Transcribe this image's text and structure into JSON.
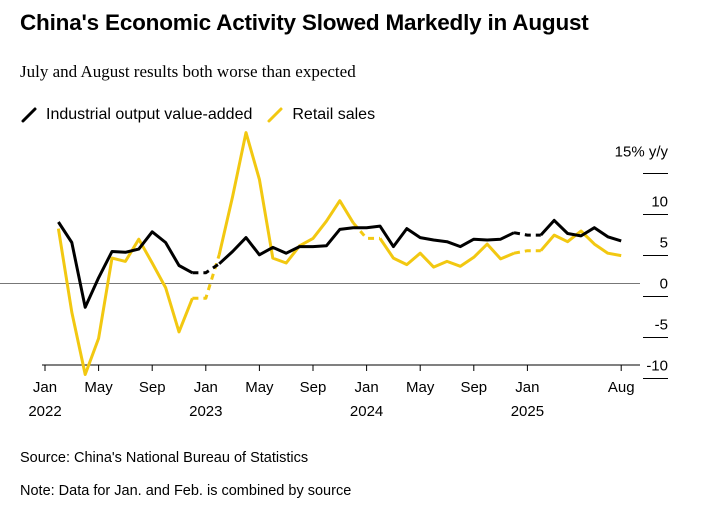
{
  "header": {
    "title": "China's Economic Activity Slowed Markedly in August",
    "subtitle": "July and August results both worse than expected"
  },
  "footer": {
    "source": "Source: China's National Bureau of Statistics",
    "note": "Note: Data for Jan. and Feb. is combined by source"
  },
  "colors": {
    "industrial": "#000000",
    "retail": "#f2c811",
    "zero_line": "#777777"
  },
  "chart_data": {
    "type": "line",
    "title": "China's Economic Activity Slowed Markedly in August",
    "subtitle": "July and August results both worse than expected",
    "ylabel": "% y/y",
    "ylim": [
      -12.5,
      17
    ],
    "y_ticks": [
      {
        "value": 15,
        "label": "15% y/y"
      },
      {
        "value": 10,
        "label": "10"
      },
      {
        "value": 5,
        "label": "5"
      },
      {
        "value": 0,
        "label": "0"
      },
      {
        "value": -5,
        "label": "-5"
      },
      {
        "value": -10,
        "label": "-10"
      }
    ],
    "x_ticks": [
      {
        "month_index": 0,
        "label": "Jan",
        "year": "2022"
      },
      {
        "month_index": 4,
        "label": "May",
        "year": ""
      },
      {
        "month_index": 8,
        "label": "Sep",
        "year": ""
      },
      {
        "month_index": 12,
        "label": "Jan",
        "year": "2023"
      },
      {
        "month_index": 16,
        "label": "May",
        "year": ""
      },
      {
        "month_index": 20,
        "label": "Sep",
        "year": ""
      },
      {
        "month_index": 24,
        "label": "Jan",
        "year": "2024"
      },
      {
        "month_index": 28,
        "label": "May",
        "year": ""
      },
      {
        "month_index": 32,
        "label": "Sep",
        "year": ""
      },
      {
        "month_index": 36,
        "label": "Jan",
        "year": "2025"
      },
      {
        "month_index": 43,
        "label": "Aug",
        "year": ""
      }
    ],
    "x_range": [
      0,
      43
    ],
    "series": [
      {
        "name": "Industrial output value-added",
        "color": "#000000",
        "values": [
          [
            1,
            7.5
          ],
          [
            2,
            5.0
          ],
          [
            3,
            -2.9
          ],
          [
            4,
            0.7
          ],
          [
            5,
            3.9
          ],
          [
            6,
            3.8
          ],
          [
            7,
            4.2
          ],
          [
            8,
            6.3
          ],
          [
            9,
            5.0
          ],
          [
            10,
            2.2
          ],
          [
            11,
            1.3
          ],
          [
            12,
            1.3
          ],
          [
            13,
            2.4
          ],
          [
            14,
            3.9
          ],
          [
            15,
            5.6
          ],
          [
            16,
            3.5
          ],
          [
            17,
            4.4
          ],
          [
            18,
            3.7
          ],
          [
            19,
            4.5
          ],
          [
            20,
            4.5
          ],
          [
            21,
            4.6
          ],
          [
            22,
            6.6
          ],
          [
            23,
            6.8
          ],
          [
            24,
            6.8
          ],
          [
            25,
            7.0
          ],
          [
            26,
            4.5
          ],
          [
            27,
            6.7
          ],
          [
            28,
            5.6
          ],
          [
            29,
            5.3
          ],
          [
            30,
            5.1
          ],
          [
            31,
            4.5
          ],
          [
            32,
            5.4
          ],
          [
            33,
            5.3
          ],
          [
            34,
            5.4
          ],
          [
            35,
            6.2
          ],
          [
            36,
            5.9
          ],
          [
            37,
            5.9
          ],
          [
            38,
            7.7
          ],
          [
            39,
            6.1
          ],
          [
            40,
            5.8
          ],
          [
            41,
            6.8
          ],
          [
            42,
            5.7
          ],
          [
            43,
            5.2
          ]
        ],
        "dashed_segments": [
          [
            11,
            13
          ],
          [
            35,
            37
          ]
        ]
      },
      {
        "name": "Retail sales",
        "color": "#f2c811",
        "values": [
          [
            1,
            6.7
          ],
          [
            2,
            -3.5
          ],
          [
            3,
            -11.1
          ],
          [
            4,
            -6.7
          ],
          [
            5,
            3.1
          ],
          [
            6,
            2.7
          ],
          [
            7,
            5.4
          ],
          [
            8,
            2.5
          ],
          [
            9,
            -0.5
          ],
          [
            10,
            -5.9
          ],
          [
            11,
            -1.8
          ],
          [
            12,
            -1.8
          ],
          [
            13,
            3.5
          ],
          [
            14,
            10.6
          ],
          [
            15,
            18.4
          ],
          [
            16,
            12.7
          ],
          [
            17,
            3.1
          ],
          [
            18,
            2.5
          ],
          [
            19,
            4.6
          ],
          [
            20,
            5.5
          ],
          [
            21,
            7.6
          ],
          [
            22,
            10.1
          ],
          [
            23,
            7.4
          ],
          [
            24,
            5.5
          ],
          [
            25,
            5.5
          ],
          [
            26,
            3.1
          ],
          [
            27,
            2.3
          ],
          [
            28,
            3.7
          ],
          [
            29,
            2.0
          ],
          [
            30,
            2.7
          ],
          [
            31,
            2.1
          ],
          [
            32,
            3.2
          ],
          [
            33,
            4.8
          ],
          [
            34,
            3.0
          ],
          [
            35,
            3.7
          ],
          [
            36,
            4.0
          ],
          [
            37,
            4.0
          ],
          [
            38,
            5.9
          ],
          [
            39,
            5.1
          ],
          [
            40,
            6.4
          ],
          [
            41,
            4.8
          ],
          [
            42,
            3.7
          ],
          [
            43,
            3.4
          ]
        ],
        "dashed_segments": [
          [
            11,
            13
          ],
          [
            23,
            25
          ],
          [
            35,
            37
          ]
        ]
      }
    ]
  }
}
